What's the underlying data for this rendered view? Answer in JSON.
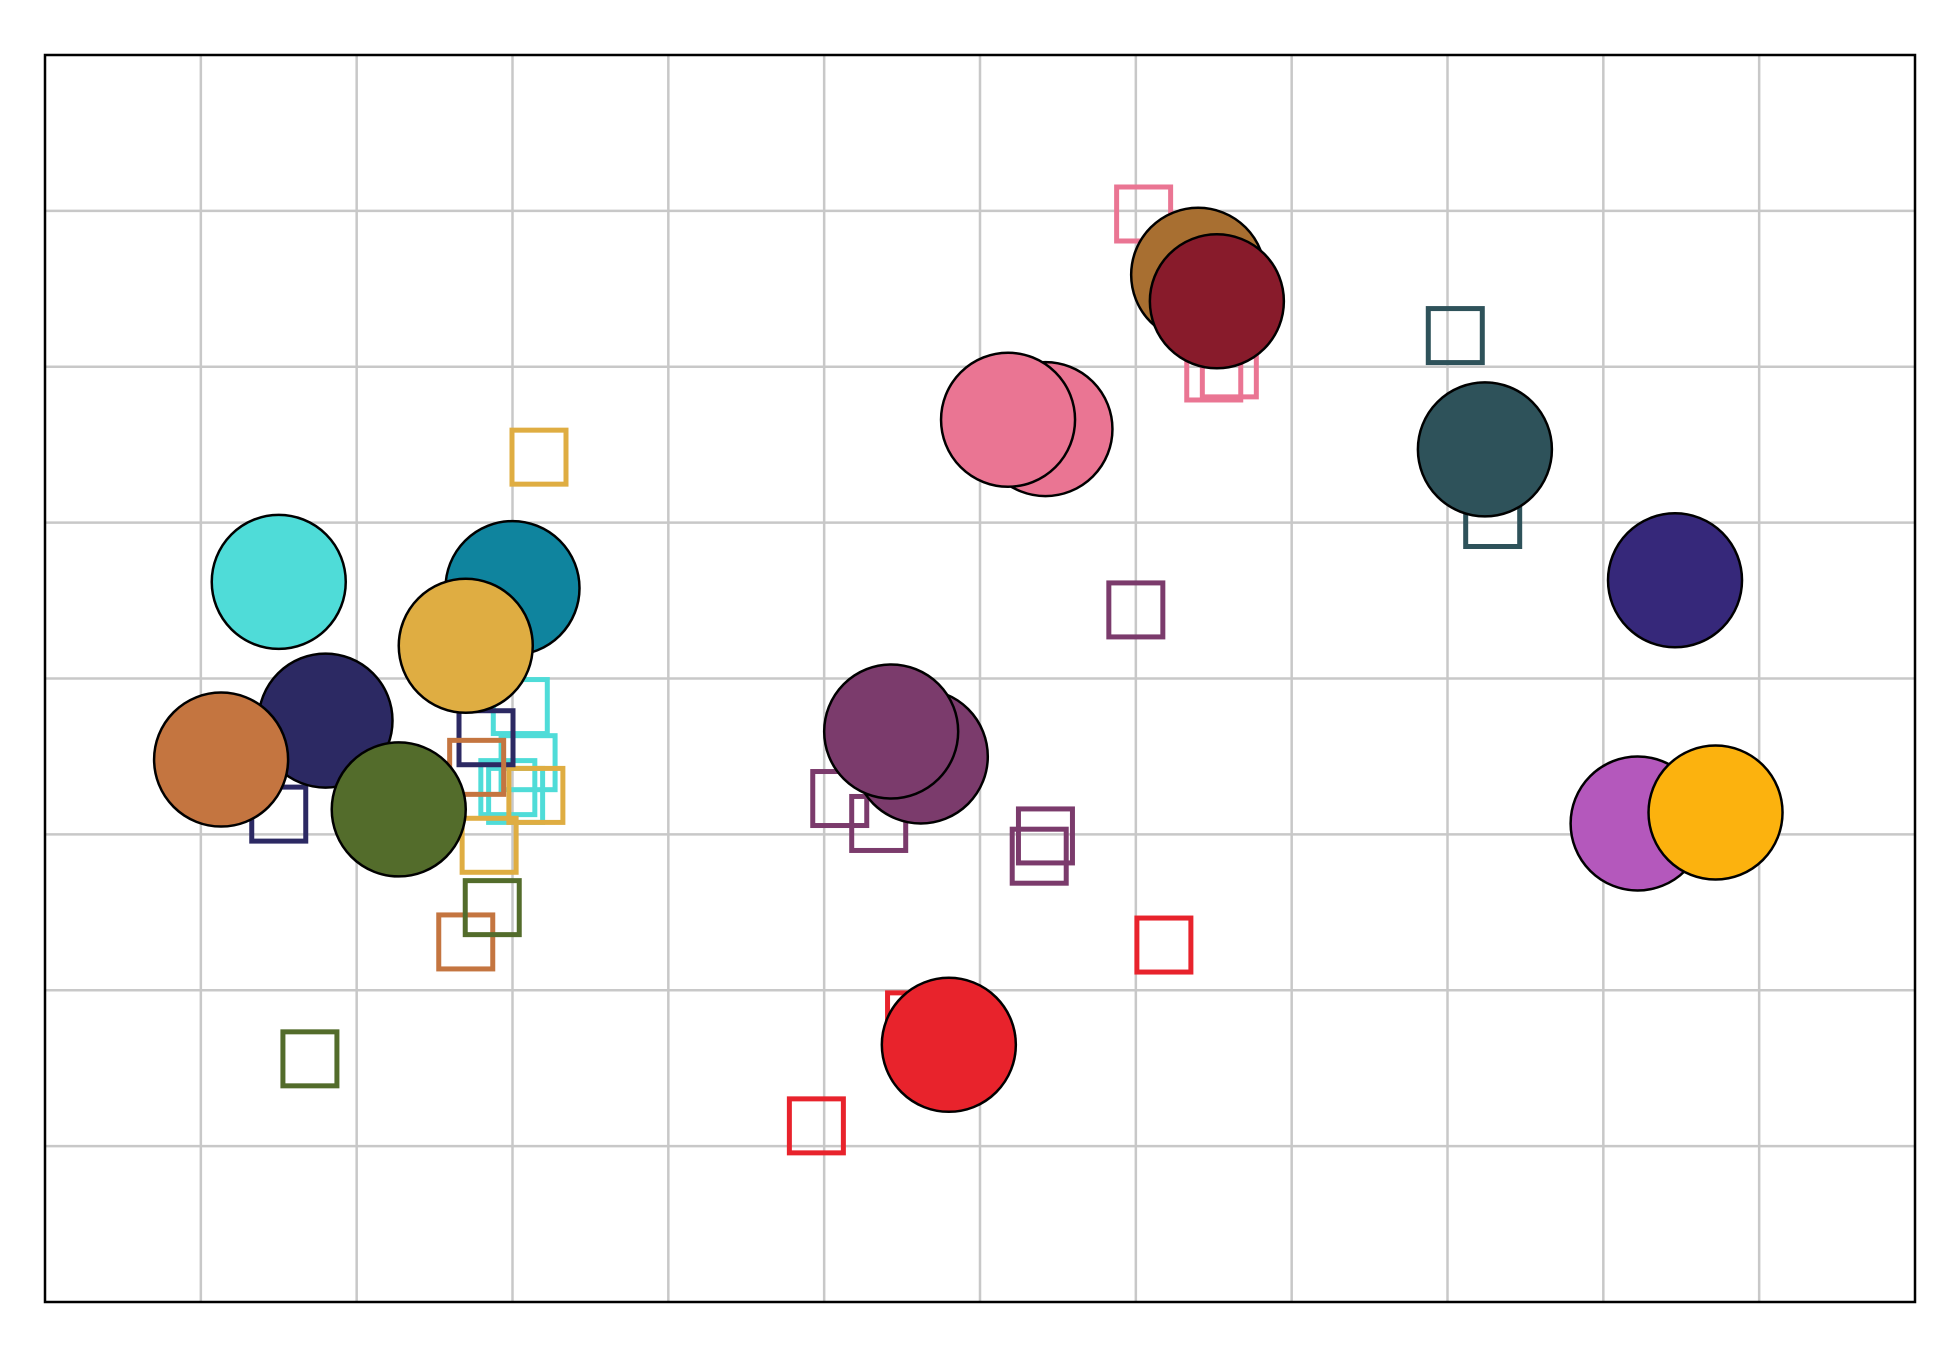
{
  "chart_data": {
    "type": "scatter",
    "title": "",
    "xlabel": "",
    "ylabel": "",
    "xlim": [
      0,
      12
    ],
    "ylim": [
      0,
      8
    ],
    "x_grid_ticks": [
      1,
      2,
      3,
      4,
      5,
      6,
      7,
      8,
      9,
      10,
      11
    ],
    "y_grid_ticks": [
      1,
      2,
      3,
      4,
      5,
      6,
      7
    ],
    "grid": true,
    "tick_labels_shown": false,
    "legend": "none",
    "colors": {
      "grid": "#c8c8c8",
      "frame": "#000000",
      "background": "#ffffff"
    },
    "groups": [
      {
        "color": "#4fdcd8",
        "centroid": [
          1.5,
          4.62
        ],
        "points": [
          [
            3.05,
            3.82
          ],
          [
            3.1,
            3.46
          ],
          [
            3.02,
            3.25
          ],
          [
            2.97,
            3.3
          ]
        ]
      },
      {
        "color": "#0f849e",
        "centroid": [
          3.0,
          4.58
        ],
        "points": []
      },
      {
        "color": "#dfad42",
        "centroid": [
          2.7,
          4.21
        ],
        "points": [
          [
            3.17,
            5.42
          ],
          [
            3.15,
            3.25
          ],
          [
            2.85,
            2.93
          ]
        ]
      },
      {
        "color": "#2c2963",
        "centroid": [
          1.8,
          3.73
        ],
        "points": [
          [
            1.5,
            3.13
          ],
          [
            2.83,
            3.62
          ]
        ]
      },
      {
        "color": "#c47540",
        "centroid": [
          1.13,
          3.48
        ],
        "points": [
          [
            2.77,
            3.43
          ],
          [
            2.7,
            2.31
          ]
        ]
      },
      {
        "color": "#536c2b",
        "centroid": [
          2.27,
          3.16
        ],
        "points": [
          [
            1.7,
            1.56
          ],
          [
            2.87,
            2.53
          ]
        ]
      },
      {
        "color": "#7b3b6c",
        "centroid": [
          5.62,
          3.5
        ],
        "points": [
          [
            5.1,
            3.23
          ],
          [
            5.35,
            3.07
          ],
          [
            6.42,
            2.99
          ],
          [
            6.38,
            2.86
          ],
          [
            7.0,
            4.44
          ]
        ]
      },
      {
        "color": "#7b3b6c",
        "centroid": [
          5.43,
          3.66
        ],
        "points": []
      },
      {
        "color": "#e8232c",
        "centroid": [
          5.8,
          1.65
        ],
        "points": [
          [
            4.95,
            1.13
          ],
          [
            7.18,
            2.29
          ],
          [
            5.58,
            1.81
          ]
        ]
      },
      {
        "color": "#ea7593",
        "centroid": [
          6.42,
          5.6
        ],
        "points": [
          [
            7.05,
            6.98
          ],
          [
            7.5,
            5.96
          ],
          [
            7.6,
            5.98
          ]
        ]
      },
      {
        "color": "#ea7593",
        "centroid": [
          6.18,
          5.66
        ],
        "points": []
      },
      {
        "color": "#a86f31",
        "centroid": [
          7.4,
          6.59
        ],
        "points": []
      },
      {
        "color": "#881b2b",
        "centroid": [
          7.52,
          6.42
        ],
        "points": []
      },
      {
        "color": "#2e525a",
        "centroid": [
          9.24,
          5.47
        ],
        "points": [
          [
            9.05,
            6.2
          ],
          [
            9.29,
            5.02
          ]
        ]
      },
      {
        "color": "#36287a",
        "centroid": [
          10.46,
          4.63
        ],
        "points": []
      },
      {
        "color": "#b458bc",
        "centroid": [
          10.22,
          3.07
        ],
        "points": []
      },
      {
        "color": "#fcb20e",
        "centroid": [
          10.72,
          3.14
        ],
        "points": []
      }
    ]
  }
}
